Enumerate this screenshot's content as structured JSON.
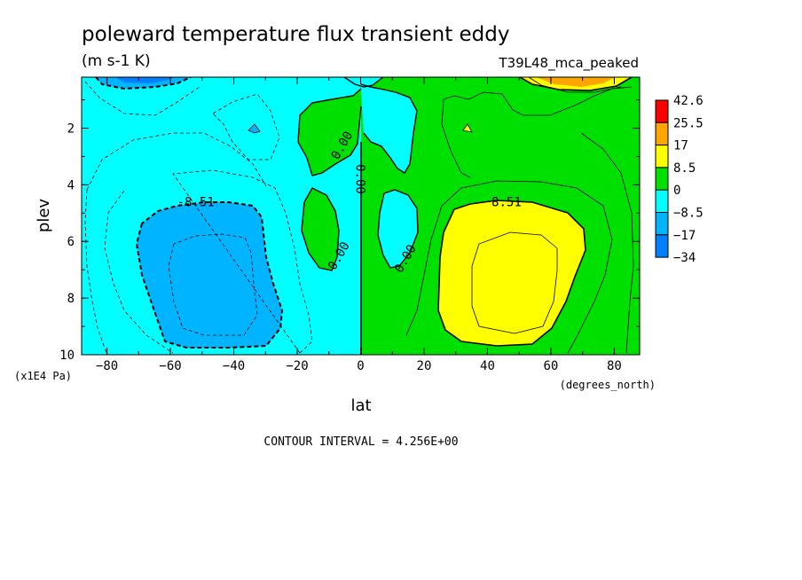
{
  "chart_data": {
    "type": "contour",
    "title": "poleward temperature flux transient eddy",
    "units": "(m s-1 K)",
    "dataset": "T39L48_mca_peaked",
    "xlabel": "lat",
    "xunits": "(degrees_north)",
    "ylabel": "plev",
    "yunits": "(x1E4 Pa)",
    "footer": "CONTOUR INTERVAL = 4.256E+00",
    "xlim": [
      -88,
      88
    ],
    "ylim": [
      10,
      0.2
    ],
    "x_ticks": [
      -80,
      -60,
      -40,
      -20,
      0,
      20,
      40,
      60,
      80
    ],
    "x_tick_labels": [
      "−80",
      "−60",
      "−40",
      "−20",
      "0",
      "20",
      "40",
      "60",
      "80"
    ],
    "y_ticks": [
      2,
      4,
      6,
      8,
      10
    ],
    "y_tick_labels": [
      "2",
      "4",
      "6",
      "8",
      "10"
    ],
    "contour_labels": [
      {
        "text": "0.00",
        "lat": -6,
        "plev": 2.6
      },
      {
        "text": "0.00",
        "lat": 0,
        "plev": 3.8
      },
      {
        "text": "0.00",
        "lat": -7,
        "plev": 6.5
      },
      {
        "text": "0.00",
        "lat": 14,
        "plev": 6.6
      },
      {
        "text": "8.51",
        "lat": 46,
        "plev": 4.6
      },
      {
        "text": "-8.51",
        "lat": -52,
        "plev": 4.6
      }
    ],
    "legend": {
      "levels": [
        "42.6",
        "25.5",
        "17",
        "8.5",
        "0",
        "−8.5",
        "−17",
        "−34"
      ],
      "colors": [
        "#ff0000",
        "#ffa500",
        "#ffff00",
        "#00e000",
        "#00ffff",
        "#00b4ff",
        "#0080ff"
      ]
    },
    "fill_colors": {
      "neg_8": "#00ffff",
      "neg_17": "#00b4ff",
      "neg_34": "#0080ff",
      "pos_0": "#00e000",
      "pos_8": "#ffff00",
      "pos_17": "#ffa500",
      "pos_25": "#ff0000"
    }
  }
}
